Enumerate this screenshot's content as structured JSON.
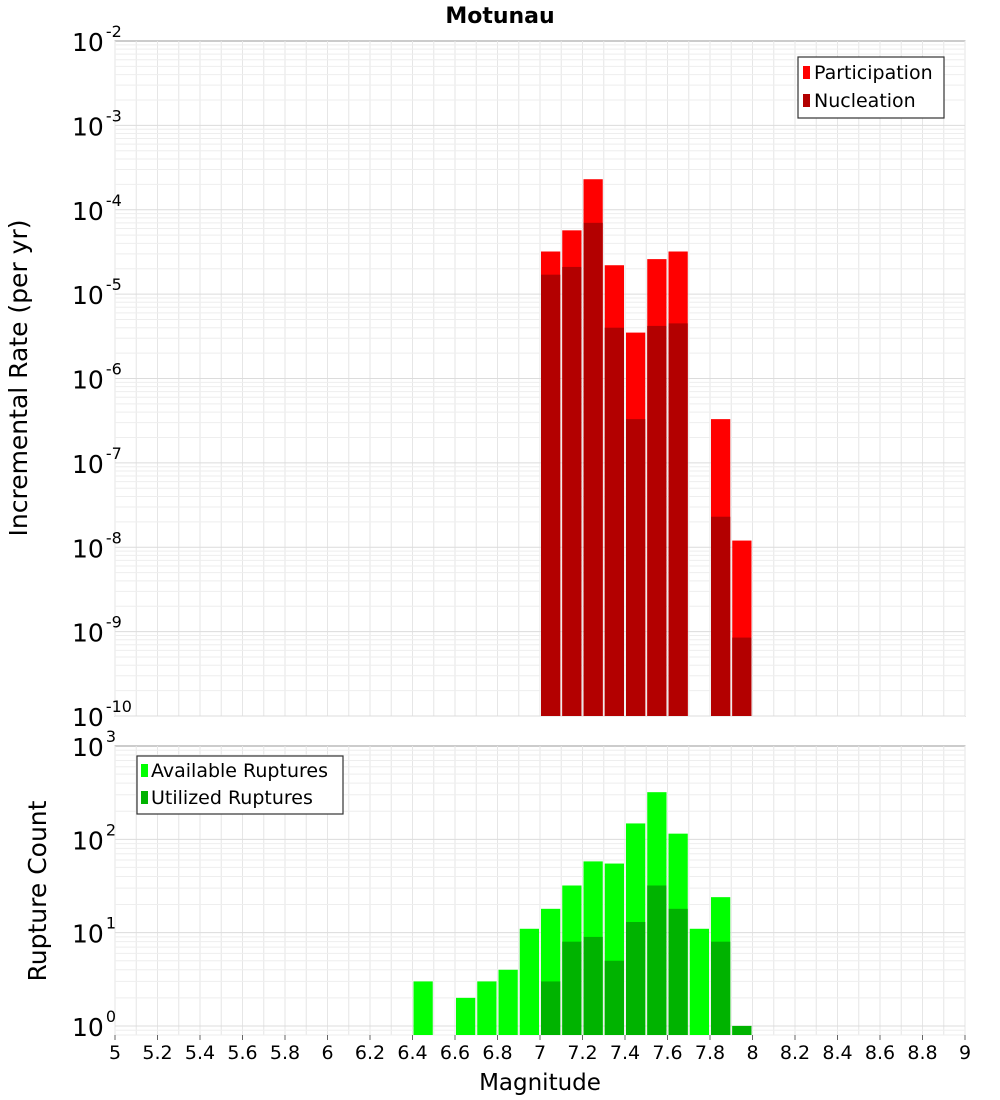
{
  "title": "Motunau",
  "xlabel": "Magnitude",
  "x_ticks": [
    "5",
    "5.2",
    "5.4",
    "5.6",
    "5.8",
    "6",
    "6.2",
    "6.4",
    "6.6",
    "6.8",
    "7",
    "7.2",
    "7.4",
    "7.6",
    "7.8",
    "8",
    "8.2",
    "8.4",
    "8.6",
    "8.8",
    "9"
  ],
  "top": {
    "ylabel": "Incremental Rate (per yr)",
    "y_exponents": [
      "-10",
      "-9",
      "-8",
      "-7",
      "-6",
      "-5",
      "-4",
      "-3",
      "-2"
    ],
    "legend": [
      {
        "label": "Participation",
        "color": "#ff0000"
      },
      {
        "label": "Nucleation",
        "color": "#b30000"
      }
    ]
  },
  "bottom": {
    "ylabel": "Rupture Count",
    "y_exponents": [
      "0",
      "1",
      "2",
      "3"
    ],
    "legend": [
      {
        "label": "Available Ruptures",
        "color": "#00ff00"
      },
      {
        "label": "Utilized Ruptures",
        "color": "#00b300"
      }
    ]
  },
  "chart_data": [
    {
      "type": "bar",
      "title": "Motunau",
      "xlabel": "",
      "ylabel": "Incremental Rate (per yr)",
      "y_scale": "log",
      "xlim": [
        5,
        9
      ],
      "ylim": [
        1e-10,
        0.01
      ],
      "grid": true,
      "legend_position": "top-right",
      "x": [
        7.05,
        7.15,
        7.25,
        7.35,
        7.45,
        7.55,
        7.65,
        7.85,
        7.95
      ],
      "series": [
        {
          "name": "Participation",
          "color": "#ff0000",
          "values": [
            3.2e-05,
            5.7e-05,
            0.00023,
            2.2e-05,
            3.5e-06,
            2.6e-05,
            3.2e-05,
            3.3e-07,
            1.2e-08
          ]
        },
        {
          "name": "Nucleation",
          "color": "#b30000",
          "values": [
            1.7e-05,
            2.1e-05,
            7e-05,
            4e-06,
            3.3e-07,
            4.2e-06,
            4.5e-06,
            2.3e-08,
            8.5e-10
          ]
        }
      ]
    },
    {
      "type": "bar",
      "xlabel": "Magnitude",
      "ylabel": "Rupture Count",
      "y_scale": "log",
      "xlim": [
        5,
        9
      ],
      "ylim": [
        0.8,
        1000
      ],
      "grid": true,
      "legend_position": "top-left",
      "x": [
        6.45,
        6.55,
        6.65,
        6.75,
        6.85,
        6.95,
        7.05,
        7.15,
        7.25,
        7.35,
        7.45,
        7.55,
        7.65,
        7.75,
        7.85,
        7.95
      ],
      "series": [
        {
          "name": "Available Ruptures",
          "color": "#00ff00",
          "values": [
            3,
            0,
            2,
            3,
            4,
            11,
            18,
            32,
            58,
            55,
            148,
            320,
            115,
            11,
            24,
            1
          ]
        },
        {
          "name": "Utilized Ruptures",
          "color": "#00b300",
          "values": [
            0,
            0,
            0,
            0,
            0,
            0,
            3,
            8,
            9,
            5,
            13,
            32,
            18,
            0,
            8,
            1
          ]
        }
      ]
    }
  ]
}
